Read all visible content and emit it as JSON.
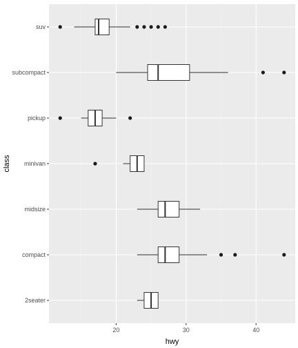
{
  "chart_data": {
    "type": "boxplot",
    "orientation": "horizontal",
    "xlabel": "hwy",
    "ylabel": "class",
    "xlim": [
      10.4,
      45.6
    ],
    "x_ticks": [
      20,
      30,
      40
    ],
    "grid": true,
    "categories": [
      "2seater",
      "compact",
      "midsize",
      "minivan",
      "pickup",
      "subcompact",
      "suv"
    ],
    "boxes": [
      {
        "category": "2seater",
        "whisker_low": 23,
        "q1": 24,
        "median": 25,
        "q3": 26,
        "whisker_high": 26,
        "outliers": []
      },
      {
        "category": "compact",
        "whisker_low": 23,
        "q1": 26,
        "median": 27,
        "q3": 29,
        "whisker_high": 33,
        "outliers": [
          35,
          37,
          44
        ]
      },
      {
        "category": "midsize",
        "whisker_low": 23,
        "q1": 26,
        "median": 27,
        "q3": 29,
        "whisker_high": 32,
        "outliers": []
      },
      {
        "category": "minivan",
        "whisker_low": 21,
        "q1": 22,
        "median": 23,
        "q3": 24,
        "whisker_high": 24,
        "outliers": [
          17
        ]
      },
      {
        "category": "pickup",
        "whisker_low": 15,
        "q1": 16,
        "median": 17,
        "q3": 18,
        "whisker_high": 20,
        "outliers": [
          12,
          22
        ]
      },
      {
        "category": "subcompact",
        "whisker_low": 20,
        "q1": 24.5,
        "median": 26,
        "q3": 30.5,
        "whisker_high": 36,
        "outliers": [
          41,
          44
        ]
      },
      {
        "category": "suv",
        "whisker_low": 14,
        "q1": 17,
        "median": 17.5,
        "q3": 19,
        "whisker_high": 22,
        "outliers": [
          12,
          23,
          24,
          25,
          26,
          27
        ]
      }
    ]
  },
  "colors": {
    "panel": "#ebebeb",
    "grid_major": "#ffffff",
    "grid_minor": "#f2f2f2",
    "box_fill": "#ffffff",
    "box_stroke": "#333333",
    "point": "#1a1a1a",
    "tick_text": "#4d4d4d",
    "tick_mark": "#333333",
    "title_text": "#000000"
  }
}
